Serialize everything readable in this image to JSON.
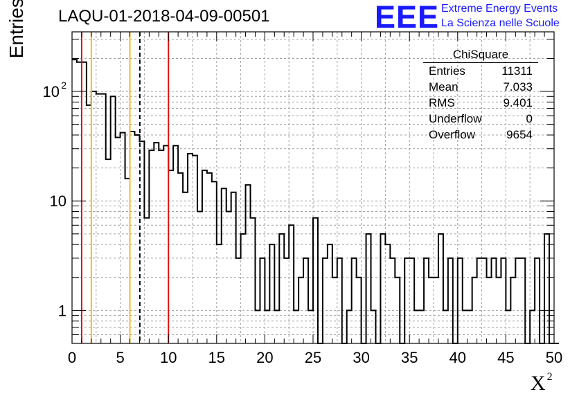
{
  "chart_data": {
    "type": "bar",
    "title": "LAQU-01-2018-04-09-00501",
    "xlabel": "X",
    "xlabel_sup": "2",
    "ylabel": "Entries/bin",
    "xlim": [
      0,
      50
    ],
    "ylim": [
      0.5,
      350
    ],
    "log_y": true,
    "grid": true,
    "bin_width": 0.5,
    "x_ticks": [
      "0",
      "5",
      "10",
      "15",
      "20",
      "25",
      "30",
      "35",
      "40",
      "45",
      "50"
    ],
    "y_ticks": [
      {
        "value": 1,
        "label": "1"
      },
      {
        "value": 10,
        "label": "10"
      },
      {
        "value": 100,
        "label": "10",
        "sup": "2"
      }
    ],
    "values": [
      195,
      185,
      185,
      75,
      100,
      95,
      95,
      24,
      90,
      38,
      42,
      16,
      43,
      40,
      35,
      7,
      29,
      34,
      29,
      32,
      19,
      32,
      18,
      12,
      27,
      26,
      8,
      19,
      18,
      15,
      4,
      13,
      8,
      12,
      3,
      5,
      14,
      7,
      1,
      3,
      1,
      4,
      1,
      5,
      3,
      6,
      1,
      2,
      3,
      1,
      7,
      0.001,
      3,
      4,
      2,
      3,
      0.001,
      1,
      3,
      2,
      0.001,
      5,
      1,
      0.001,
      5,
      4,
      3,
      2,
      0.001,
      3,
      3,
      1,
      1,
      3,
      2,
      2,
      5,
      1,
      3,
      0.001,
      3,
      1,
      1,
      2,
      3,
      3,
      2,
      3,
      2,
      3,
      1,
      2,
      3,
      3,
      0.001,
      1,
      3,
      0.001,
      5,
      0.001,
      0.001
    ],
    "vertical_lines": [
      {
        "x": 1,
        "color": "#e01010",
        "style": "solid"
      },
      {
        "x": 2,
        "color": "#f0c020",
        "style": "solid"
      },
      {
        "x": 6,
        "color": "#f0c020",
        "style": "solid"
      },
      {
        "x": 7.033,
        "color": "#000000",
        "style": "dashed"
      },
      {
        "x": 10,
        "color": "#e01010",
        "style": "solid"
      }
    ],
    "stats": {
      "name": "ChiSquare",
      "rows": [
        {
          "label": "Entries",
          "value": "11311"
        },
        {
          "label": "Mean",
          "value": "7.033"
        },
        {
          "label": "RMS",
          "value": "9.401"
        },
        {
          "label": "Underflow",
          "value": "0"
        },
        {
          "label": "Overflow",
          "value": "9654"
        }
      ]
    }
  },
  "logo": {
    "mark": "EEE",
    "line1": "Extreme Energy Events",
    "line2": "La Scienza nelle Scuole"
  }
}
